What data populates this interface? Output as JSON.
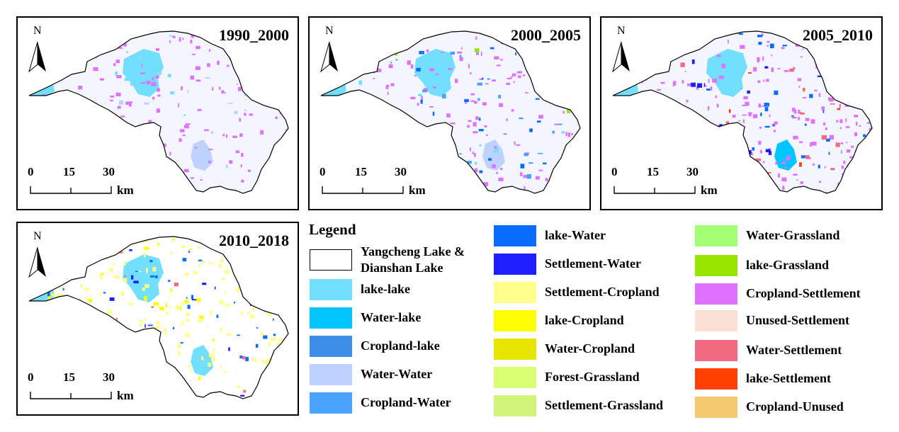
{
  "panels": [
    {
      "title": "1990_2000"
    },
    {
      "title": "2000_2005"
    },
    {
      "title": "2005_2010"
    },
    {
      "title": "2010_2018"
    }
  ],
  "north_label": "N",
  "scale": {
    "ticks": [
      "0",
      "15",
      "30"
    ],
    "unit": "km"
  },
  "legend": {
    "title": "Legend",
    "items": [
      {
        "label": "Yangcheng Lake & Dianshan Lake",
        "color": "#ffffff"
      },
      {
        "label": "lake-lake",
        "color": "#73dfff"
      },
      {
        "label": "Water-lake",
        "color": "#00c5ff"
      },
      {
        "label": "Cropland-lake",
        "color": "#3c8ee6"
      },
      {
        "label": "Water-Water",
        "color": "#bed2ff"
      },
      {
        "label": "Cropland-Water",
        "color": "#4aa3ff"
      },
      {
        "label": "lake-Water",
        "color": "#0a6bff"
      },
      {
        "label": "Settlement-Water",
        "color": "#1e1eff"
      },
      {
        "label": "Settlement-Cropland",
        "color": "#ffff8c"
      },
      {
        "label": "lake-Cropland",
        "color": "#ffff00"
      },
      {
        "label": "Water-Cropland",
        "color": "#e6e600"
      },
      {
        "label": "Forest-Grassland",
        "color": "#d9ff73"
      },
      {
        "label": "Settlement-Grassland",
        "color": "#d1f57a"
      },
      {
        "label": "Water-Grassland",
        "color": "#a3ff73"
      },
      {
        "label": "lake-Grassland",
        "color": "#98e600"
      },
      {
        "label": "Cropland-Settlement",
        "color": "#df73ff"
      },
      {
        "label": "Unused-Settlement",
        "color": "#fbe0d4"
      },
      {
        "label": "Water-Settlement",
        "color": "#f26a80"
      },
      {
        "label": "lake-Settlement",
        "color": "#ff4000"
      },
      {
        "label": "Cropland-Unused",
        "color": "#f5c96e"
      }
    ]
  }
}
